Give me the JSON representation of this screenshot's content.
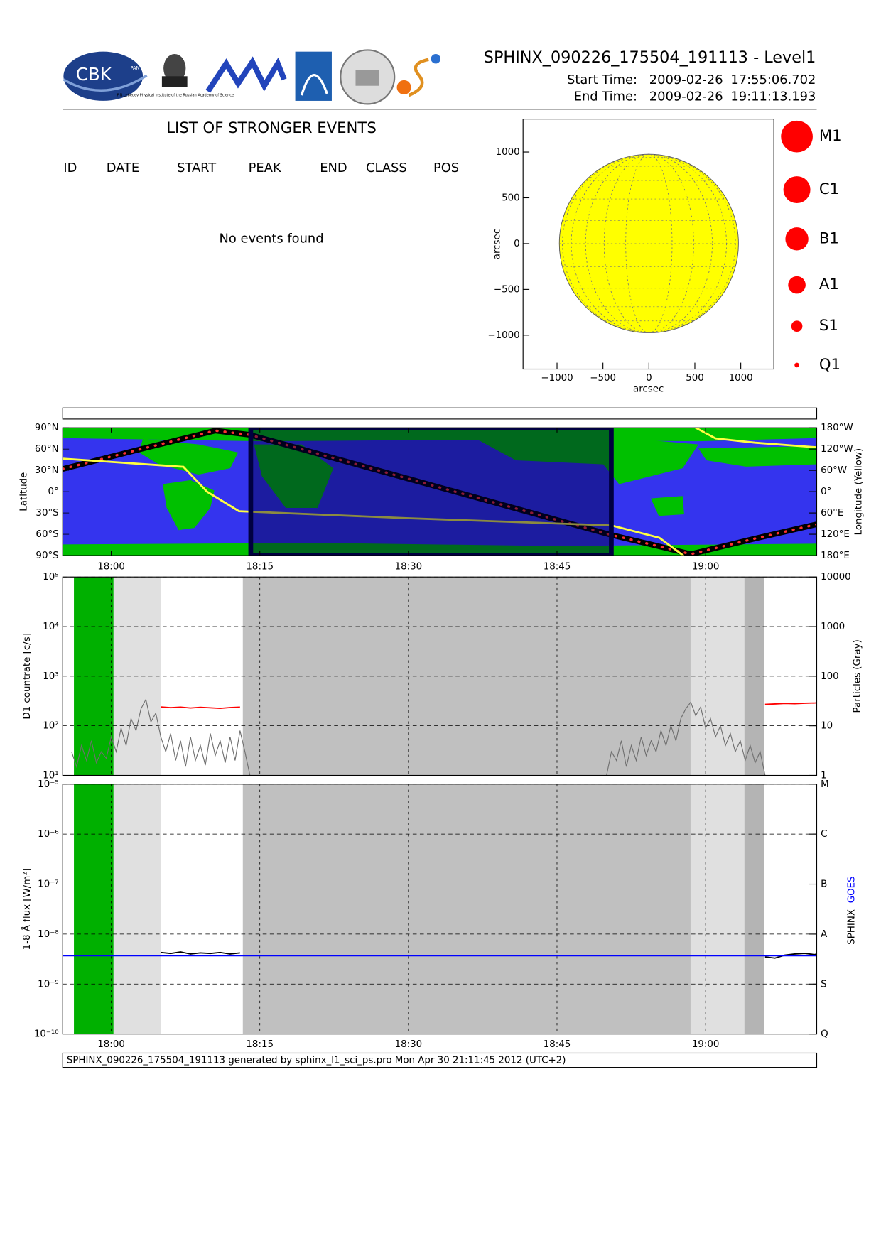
{
  "header": {
    "logo_text": "CBK",
    "logo_sub": "PAN",
    "institute": "P.N.Lebedev Physical Institute of the Russian Academy of Science",
    "title": "SPHINX_090226_175504_191113 - Level1",
    "start_label": "Start Time:",
    "start_date": "2009-02-26",
    "start_time": "17:55:06.702",
    "end_label": "End Time:",
    "end_date": "2009-02-26",
    "end_time": "19:11:13.193"
  },
  "events": {
    "title": "LIST OF STRONGER EVENTS",
    "columns": [
      "ID",
      "DATE",
      "START",
      "PEAK",
      "END",
      "CLASS",
      "POS"
    ],
    "message": "No events found"
  },
  "chart_data": [
    {
      "type": "disk",
      "xlabel": "arcsec",
      "ylabel": "arcsec",
      "xlim": [
        -1370,
        1360
      ],
      "ylim": [
        -1370,
        1360
      ],
      "xticks": [
        {
          "value": -1000,
          "label": "−1000"
        },
        {
          "value": -500,
          "label": "−500"
        },
        0,
        500,
        1000
      ],
      "yticks": [
        {
          "value": -1000,
          "label": "−1000"
        },
        {
          "value": -500,
          "label": "−500"
        },
        0,
        500,
        1000
      ],
      "radius": 975,
      "color": "#ffff00",
      "classes": [
        "M1",
        "C1",
        "B1",
        "A1",
        "S1",
        "Q1"
      ],
      "class_color": "#ff0000"
    },
    {
      "type": "map",
      "ylabel": "Latitude",
      "y2label": "Longitude (Yellow)",
      "xlim": [
        "17:55:06",
        "19:11:13"
      ],
      "xticks": [
        "18:00",
        "18:15",
        "18:30",
        "18:45",
        "19:00"
      ],
      "ylim": [
        -90,
        90
      ],
      "yticks": [
        {
          "value": 90,
          "label": "90°N"
        },
        {
          "value": 60,
          "label": "60°N"
        },
        {
          "value": 30,
          "label": "30°N"
        },
        {
          "value": 0,
          "label": "0°"
        },
        {
          "value": -30,
          "label": "30°S"
        },
        {
          "value": -60,
          "label": "60°S"
        },
        {
          "value": -90,
          "label": "90°S"
        }
      ],
      "y2lim": [
        -180,
        180
      ],
      "y2ticks": [
        {
          "value": 180,
          "label": "180°W"
        },
        {
          "value": 120,
          "label": "120°W"
        },
        {
          "value": 60,
          "label": "60°W"
        },
        {
          "value": 0,
          "label": "0°"
        },
        {
          "value": -60,
          "label": "60°E"
        },
        {
          "value": -120,
          "label": "120°E"
        },
        {
          "value": -180,
          "label": "180°E"
        }
      ],
      "ocean_color": "#3434ee",
      "land_color": "#00c000",
      "shade": {
        "start": "18:14:05",
        "end": "18:50:29",
        "color": "#000040"
      },
      "series": [
        {
          "color": "#000000",
          "x": [
            "17:55:06",
            "18:03:00",
            "18:10:30",
            "18:14:00",
            "18:50:30",
            "18:55:00",
            "18:58:30",
            "19:05:00",
            "19:11:13"
          ],
          "values": [
            32,
            60,
            86,
            80,
            -61,
            -76,
            -88,
            -66,
            -46
          ]
        },
        {
          "color": "#ffff40",
          "axis": "y2",
          "x": [
            "17:55:06",
            "18:07:17",
            "18:09:40",
            "18:12:53",
            "18:30:00",
            "18:50:30",
            "18:55:20",
            "18:57:45",
            "18:58:20",
            "18:59:00",
            "19:01:00",
            "19:05:00",
            "19:11:13"
          ],
          "values": [
            93,
            70,
            0,
            -55,
            -75,
            -95,
            -130,
            -180,
            null,
            180,
            150,
            138,
            125
          ]
        }
      ]
    },
    {
      "type": "log_timeseries",
      "ylabel": "D1 countrate [c/s]",
      "y2label": "Particles (Gray)",
      "log": true,
      "grid": true,
      "xlim": [
        "17:55:06",
        "19:11:13"
      ],
      "ylim": [
        10,
        100000
      ],
      "yticks": [
        {
          "value": 10,
          "label": "10¹"
        },
        {
          "value": 100,
          "label": "10²"
        },
        {
          "value": 1000,
          "label": "10³"
        },
        {
          "value": 10000,
          "label": "10⁴"
        },
        {
          "value": 100000,
          "label": "10⁵"
        }
      ],
      "y2lim": [
        1,
        10000
      ],
      "y2ticks": [
        1,
        10,
        100,
        1000,
        10000
      ],
      "bands": [
        {
          "start": "17:56:14",
          "end": "18:00:14",
          "color": "#00b000"
        },
        {
          "start": "18:00:14",
          "end": "18:05:02",
          "color": "#e0e0e0"
        },
        {
          "start": "18:13:17",
          "end": "18:58:29",
          "color": "#c0c0c0"
        },
        {
          "start": "18:58:29",
          "end": "19:03:55",
          "color": "#e0e0e0"
        },
        {
          "start": "19:03:55",
          "end": "19:05:55",
          "color": "#b4b4b4"
        }
      ],
      "series": [
        {
          "color": "#ff0000",
          "x": [
            "18:05:00",
            "18:06:00",
            "18:07:00",
            "18:08:00",
            "18:09:00",
            "18:10:00",
            "18:11:00",
            "18:12:00",
            "18:13:00",
            "18:40:00",
            "19:06:00",
            "19:07:00",
            "19:08:00",
            "19:09:00",
            "19:10:00",
            "19:11:00",
            "19:11:13"
          ],
          "values": [
            240,
            232,
            238,
            228,
            236,
            230,
            225,
            233,
            238,
            null,
            270,
            275,
            282,
            278,
            285,
            288,
            290
          ]
        },
        {
          "color": "#6e6e6e",
          "axis": "y2",
          "x": [
            "17:56:00",
            "17:56:30",
            "17:57:00",
            "17:57:30",
            "17:58:00",
            "17:58:30",
            "17:59:00",
            "17:59:30",
            "18:00:00",
            "18:00:30",
            "18:01:00",
            "18:01:30",
            "18:02:00",
            "18:02:30",
            "18:03:00",
            "18:03:30",
            "18:04:00",
            "18:04:30",
            "18:05:00",
            "18:05:30",
            "18:06:00",
            "18:06:30",
            "18:07:00",
            "18:07:30",
            "18:08:00",
            "18:08:30",
            "18:09:00",
            "18:09:30",
            "18:10:00",
            "18:10:30",
            "18:11:00",
            "18:11:30",
            "18:12:00",
            "18:12:30",
            "18:13:00",
            "18:13:30",
            "18:14:00",
            "18:30:00",
            "18:50:00",
            "18:50:30",
            "18:51:00",
            "18:51:30",
            "18:52:00",
            "18:52:30",
            "18:53:00",
            "18:53:30",
            "18:54:00",
            "18:54:30",
            "18:55:00",
            "18:55:30",
            "18:56:00",
            "18:56:30",
            "18:57:00",
            "18:57:30",
            "18:58:00",
            "18:58:30",
            "18:59:00",
            "18:59:30",
            "19:00:00",
            "19:00:30",
            "19:01:00",
            "19:01:30",
            "19:02:00",
            "19:02:30",
            "19:03:00",
            "19:03:30",
            "19:04:00",
            "19:04:30",
            "19:05:00",
            "19:05:30",
            "19:06:00"
          ],
          "values": [
            3,
            1.5,
            4,
            2,
            5,
            1.8,
            3,
            2.2,
            6,
            3,
            9,
            4,
            14,
            8,
            22,
            34,
            12,
            18,
            6,
            3,
            7,
            2,
            5,
            1.5,
            6,
            2,
            4,
            1.6,
            7,
            2.5,
            5,
            1.8,
            6,
            2,
            8,
            3,
            1,
            null,
            1,
            3,
            2,
            5,
            1.5,
            4,
            2,
            6,
            2.5,
            5,
            3,
            8,
            4,
            10,
            5,
            14,
            22,
            30,
            16,
            24,
            9,
            14,
            6,
            10,
            4,
            7,
            3,
            5,
            2,
            4,
            1.8,
            3,
            1
          ]
        }
      ]
    },
    {
      "type": "log_timeseries",
      "ylabel": "1-8 Å flux [W/m²]",
      "log": true,
      "grid": true,
      "xlim": [
        "17:55:06",
        "19:11:13"
      ],
      "xticks": [
        "18:00",
        "18:15",
        "18:30",
        "18:45",
        "19:00"
      ],
      "ylim": [
        1e-10,
        1e-05
      ],
      "yticks": [
        {
          "value": 1e-10,
          "label": "10⁻¹⁰"
        },
        {
          "value": 1e-09,
          "label": "10⁻⁹"
        },
        {
          "value": 1e-08,
          "label": "10⁻⁸"
        },
        {
          "value": 1e-07,
          "label": "10⁻⁷"
        },
        {
          "value": 1e-06,
          "label": "10⁻⁶"
        },
        {
          "value": 1e-05,
          "label": "10⁻⁵"
        }
      ],
      "y2lim": [
        1e-10,
        1e-05
      ],
      "y2ticks": [
        {
          "value": 1e-10,
          "label": "Q"
        },
        {
          "value": 1e-09,
          "label": "S"
        },
        {
          "value": 1e-08,
          "label": "A"
        },
        {
          "value": 1e-07,
          "label": "B"
        },
        {
          "value": 1e-06,
          "label": "C"
        },
        {
          "value": 1e-05,
          "label": "M"
        }
      ],
      "bands": [
        {
          "start": "17:56:14",
          "end": "18:00:14",
          "color": "#00b000"
        },
        {
          "start": "18:00:14",
          "end": "18:05:02",
          "color": "#e0e0e0"
        },
        {
          "start": "18:13:17",
          "end": "18:58:29",
          "color": "#c0c0c0"
        },
        {
          "start": "18:58:29",
          "end": "19:03:55",
          "color": "#e0e0e0"
        },
        {
          "start": "19:03:55",
          "end": "19:05:55",
          "color": "#b4b4b4"
        }
      ],
      "series": [
        {
          "name": "SPHINX",
          "color": "#000000",
          "x": [
            "18:05:00",
            "18:06:00",
            "18:07:00",
            "18:08:00",
            "18:09:00",
            "18:10:00",
            "18:11:00",
            "18:12:00",
            "18:13:00",
            "18:40:00",
            "19:06:00",
            "19:07:00",
            "19:08:00",
            "19:09:00",
            "19:10:00",
            "19:11:00",
            "19:11:13"
          ],
          "values": [
            4.3e-09,
            4.1e-09,
            4.4e-09,
            4e-09,
            4.2e-09,
            4.1e-09,
            4.3e-09,
            4e-09,
            4.2e-09,
            null,
            3.5e-09,
            3.3e-09,
            3.8e-09,
            4e-09,
            4.1e-09,
            3.9e-09,
            4e-09
          ]
        },
        {
          "name": "GOES",
          "color": "#0000ff",
          "x": [
            "17:55:06",
            "19:11:13"
          ],
          "values": [
            3.7e-09,
            3.7e-09
          ]
        }
      ]
    }
  ],
  "footer": "SPHINX_090226_175504_191113 generated by sphinx_l1_sci_ps.pro Mon Apr 30 21:11:45 2012 (UTC+2)"
}
